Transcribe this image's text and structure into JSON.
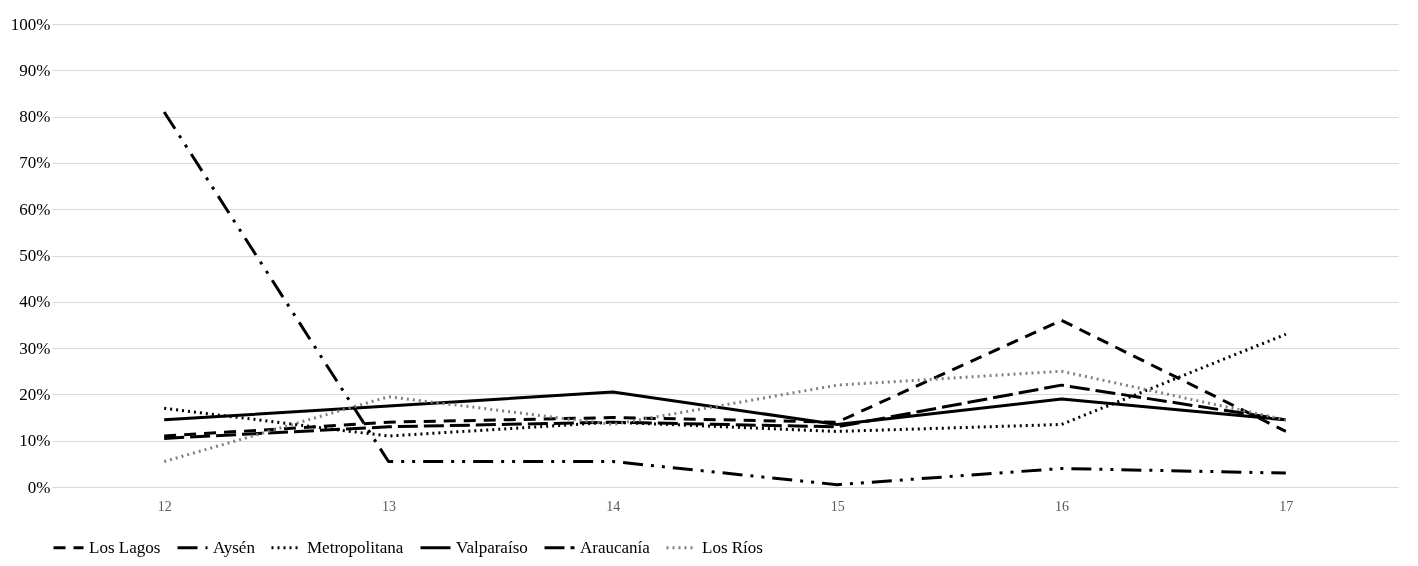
{
  "chart_data": {
    "type": "line",
    "categories": [
      "12",
      "13",
      "14",
      "15",
      "16",
      "17"
    ],
    "series": [
      {
        "name": "Los Lagos",
        "color": "#000000",
        "line_style": "dashed",
        "values": [
          11,
          14,
          15,
          14,
          36,
          12
        ]
      },
      {
        "name": "Aysén",
        "color": "#000000",
        "line_style": "dashed",
        "values": [
          81,
          5.5,
          5.5,
          0.5,
          4,
          3
        ]
      },
      {
        "name": "Metropolitana",
        "color": "#000000",
        "line_style": "dotted",
        "values": [
          17,
          11,
          14,
          12,
          13.5,
          33
        ]
      },
      {
        "name": "Valparaíso",
        "color": "#000000",
        "line_style": "solid",
        "values": [
          14.5,
          17.5,
          20.5,
          13.5,
          19,
          14.5
        ]
      },
      {
        "name": "Araucanía",
        "color": "#000000",
        "line_style": "dashed",
        "values": [
          10.5,
          13,
          14,
          13,
          22,
          14.5
        ]
      },
      {
        "name": "Los Ríos",
        "color": "#808080",
        "line_style": "dotted",
        "values": [
          5.5,
          19.5,
          13.5,
          22,
          25,
          14.5
        ]
      }
    ],
    "ylim": [
      0,
      100
    ],
    "yticks": [
      {
        "value": 0,
        "label": "0%"
      },
      {
        "value": 10,
        "label": "10%"
      },
      {
        "value": 20,
        "label": "20%"
      },
      {
        "value": 30,
        "label": "30%"
      },
      {
        "value": 40,
        "label": "40%"
      },
      {
        "value": 50,
        "label": "50%"
      },
      {
        "value": 60,
        "label": "60%"
      },
      {
        "value": 70,
        "label": "70%"
      },
      {
        "value": 80,
        "label": "80%"
      },
      {
        "value": 90,
        "label": "90%"
      },
      {
        "value": 100,
        "label": "100%"
      }
    ],
    "grid": "y",
    "legend": "bottom",
    "marker": "none"
  }
}
